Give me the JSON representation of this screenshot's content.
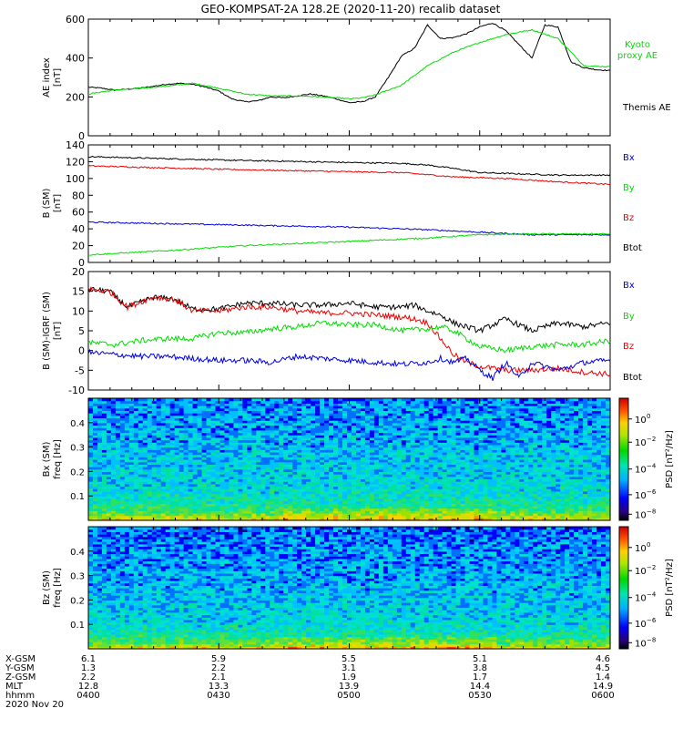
{
  "title": "GEO-KOMPSAT-2A 128.2E (2020-11-20) recalib dataset",
  "colors": {
    "black": "#000000",
    "green": "#00dd00",
    "red": "#ee0000",
    "blue": "#0000dd"
  },
  "chart_data": [
    {
      "type": "line",
      "ylabel": [
        "AE index",
        "[nT]"
      ],
      "ylim": [
        0,
        600
      ],
      "yticks": [
        0,
        200,
        400,
        600
      ],
      "x_hours": [
        4,
        6
      ],
      "series": [
        {
          "name": "Themis AE",
          "color": "#000000",
          "x": [
            4.0,
            4.05,
            4.1,
            4.2,
            4.3,
            4.35,
            4.4,
            4.45,
            4.5,
            4.55,
            4.6,
            4.65,
            4.7,
            4.75,
            4.8,
            4.85,
            4.9,
            4.95,
            5.0,
            5.05,
            5.1,
            5.15,
            5.2,
            5.25,
            5.3,
            5.35,
            5.4,
            5.45,
            5.5,
            5.55,
            5.6,
            5.65,
            5.7,
            5.75,
            5.8,
            5.85,
            5.9,
            5.95,
            6.0
          ],
          "y": [
            250,
            245,
            235,
            245,
            265,
            270,
            265,
            250,
            230,
            190,
            175,
            180,
            200,
            195,
            205,
            215,
            205,
            190,
            170,
            175,
            200,
            300,
            410,
            450,
            570,
            500,
            505,
            525,
            560,
            580,
            540,
            470,
            400,
            570,
            560,
            380,
            350,
            340,
            335
          ]
        },
        {
          "name": "Kyoto proxy AE",
          "color": "#00dd00",
          "x": [
            4.0,
            4.1,
            4.2,
            4.3,
            4.4,
            4.5,
            4.6,
            4.7,
            4.8,
            4.9,
            5.0,
            5.05,
            5.1,
            5.2,
            5.3,
            5.4,
            5.5,
            5.6,
            5.7,
            5.8,
            5.9,
            6.0
          ],
          "y": [
            215,
            235,
            245,
            255,
            270,
            245,
            215,
            205,
            205,
            200,
            190,
            195,
            210,
            260,
            360,
            430,
            480,
            520,
            545,
            500,
            360,
            355
          ]
        }
      ],
      "legend": [
        "Kyoto",
        "proxy AE",
        "Themis AE"
      ]
    },
    {
      "type": "line",
      "ylabel": [
        "B (SM)",
        "[nT]"
      ],
      "ylim": [
        0,
        140
      ],
      "yticks": [
        0,
        20,
        40,
        60,
        80,
        100,
        120,
        140
      ],
      "series": [
        {
          "name": "Btot",
          "color": "#000000",
          "x": [
            4.0,
            4.5,
            5.0,
            5.2,
            5.3,
            5.4,
            5.5,
            5.6,
            5.8,
            6.0
          ],
          "y": [
            126,
            122,
            119,
            118,
            116,
            112,
            107,
            106,
            104,
            104
          ]
        },
        {
          "name": "Bz",
          "color": "#ee0000",
          "x": [
            4.0,
            4.5,
            5.0,
            5.2,
            5.4,
            5.6,
            5.8,
            6.0
          ],
          "y": [
            115,
            111,
            108,
            107,
            102,
            100,
            96,
            93
          ]
        },
        {
          "name": "Bx",
          "color": "#0000dd",
          "x": [
            4.0,
            4.5,
            5.0,
            5.3,
            5.5,
            5.7,
            6.0
          ],
          "y": [
            48,
            45,
            42,
            39,
            36,
            33,
            33
          ]
        },
        {
          "name": "By",
          "color": "#00dd00",
          "x": [
            4.0,
            4.3,
            4.6,
            5.0,
            5.3,
            5.5,
            5.7,
            6.0
          ],
          "y": [
            9,
            14,
            20,
            25,
            29,
            33,
            34,
            34
          ]
        }
      ],
      "legend": [
        "Bx",
        "By",
        "Bz",
        "Btot"
      ]
    },
    {
      "type": "line",
      "ylabel": [
        "B (SM)-IGRF (SM)",
        "[nT]"
      ],
      "ylim": [
        -10,
        20
      ],
      "yticks": [
        -10,
        -5,
        0,
        5,
        10,
        15,
        20
      ],
      "series": [
        {
          "name": "Btot",
          "color": "#000000",
          "x": [
            4.0,
            4.08,
            4.15,
            4.25,
            4.33,
            4.4,
            4.5,
            4.6,
            4.7,
            4.8,
            4.9,
            5.0,
            5.1,
            5.2,
            5.25,
            5.3,
            5.35,
            5.4,
            5.45,
            5.5,
            5.6,
            5.7,
            5.8,
            5.9,
            6.0
          ],
          "y": [
            15.5,
            15,
            11,
            13.5,
            13,
            10.5,
            10.5,
            12,
            12,
            11.5,
            11.5,
            12,
            11,
            11,
            11.5,
            10,
            9,
            7,
            6,
            5,
            8,
            5,
            7,
            6,
            7
          ]
        },
        {
          "name": "Bz",
          "color": "#ee0000",
          "x": [
            4.0,
            4.08,
            4.15,
            4.25,
            4.33,
            4.4,
            4.5,
            4.6,
            4.7,
            4.8,
            4.9,
            5.0,
            5.1,
            5.2,
            5.25,
            5.3,
            5.35,
            5.4,
            5.45,
            5.5,
            5.6,
            5.7,
            5.8,
            5.9,
            6.0
          ],
          "y": [
            15.5,
            15,
            11,
            13.5,
            13,
            10,
            10,
            11,
            11,
            10,
            9.5,
            9.5,
            9,
            8.5,
            8,
            7,
            3,
            -1,
            -3,
            -4,
            -5,
            -5,
            -4.5,
            -5.5,
            -6
          ]
        },
        {
          "name": "By",
          "color": "#00dd00",
          "x": [
            4.0,
            4.1,
            4.2,
            4.3,
            4.4,
            4.5,
            4.6,
            4.7,
            4.8,
            4.9,
            5.0,
            5.1,
            5.2,
            5.3,
            5.35,
            5.4,
            5.45,
            5.5,
            5.6,
            5.7,
            5.8,
            5.9,
            6.0
          ],
          "y": [
            2,
            1.5,
            2.5,
            3,
            3,
            4.5,
            4.5,
            5.5,
            6,
            7,
            6.5,
            6.5,
            5,
            5.5,
            6,
            5,
            3,
            1,
            0,
            1,
            1.5,
            1.5,
            2.5
          ]
        },
        {
          "name": "Bx",
          "color": "#0000dd",
          "x": [
            4.0,
            4.1,
            4.2,
            4.3,
            4.4,
            4.5,
            4.6,
            4.7,
            4.8,
            4.9,
            5.0,
            5.1,
            5.2,
            5.3,
            5.35,
            5.4,
            5.45,
            5.5,
            5.55,
            5.6,
            5.65,
            5.7,
            5.8,
            5.9,
            6.0
          ],
          "y": [
            -0.5,
            -1,
            -1.5,
            -1.5,
            -2,
            -2.5,
            -2.5,
            -3,
            -1.5,
            -2,
            -2.5,
            -3,
            -3.5,
            -3,
            -2,
            -3,
            -2,
            -5,
            -7,
            -3,
            -7,
            -3,
            -5,
            -3,
            -2.5
          ]
        }
      ],
      "legend": [
        "Bx",
        "By",
        "Bz",
        "Btot"
      ]
    },
    {
      "type": "heatmap",
      "ylabel": [
        "Bx (SM)",
        "freq [Hz]"
      ],
      "yticks": [
        "0.1",
        "0.2",
        "0.3",
        "0.4"
      ],
      "colorbar_label": "PSD [nT²/Hz]",
      "colorbar_ticks": [
        "10",
        "10",
        "10",
        "10",
        "10"
      ],
      "colorbar_exponents": [
        "0",
        "−2",
        "−4",
        "−6",
        "−8"
      ]
    },
    {
      "type": "heatmap",
      "ylabel": [
        "Bz (SM)",
        "freq [Hz]"
      ],
      "yticks": [
        "0.1",
        "0.2",
        "0.3",
        "0.4"
      ],
      "colorbar_label": "PSD [nT²/Hz]",
      "colorbar_ticks": [
        "10",
        "10",
        "10",
        "10",
        "10"
      ],
      "colorbar_exponents": [
        "0",
        "−2",
        "−4",
        "−6",
        "−8"
      ]
    }
  ],
  "ephemeris": {
    "labels": [
      "X-GSM",
      "Y-GSM",
      "Z-GSM",
      "MLT",
      "hhmm"
    ],
    "columns": [
      [
        "6.1",
        "1.3",
        "2.2",
        "12.8",
        "0400"
      ],
      [
        "5.9",
        "2.2",
        "2.1",
        "13.3",
        "0430"
      ],
      [
        "5.5",
        "3.1",
        "1.9",
        "13.9",
        "0500"
      ],
      [
        "5.1",
        "3.8",
        "1.7",
        "14.4",
        "0530"
      ],
      [
        "4.6",
        "4.5",
        "1.4",
        "14.9",
        "0600"
      ]
    ],
    "date": "2020 Nov 20"
  }
}
